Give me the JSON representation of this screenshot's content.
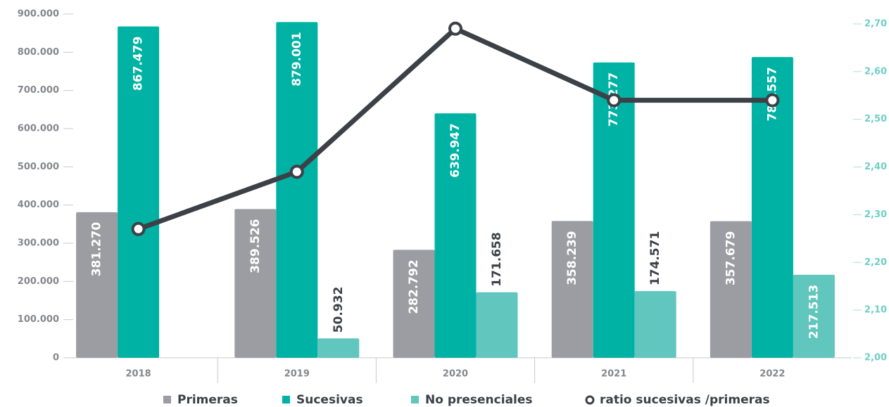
{
  "chart_data": {
    "type": "bar",
    "categories": [
      "2018",
      "2019",
      "2020",
      "2021",
      "2022"
    ],
    "series": [
      {
        "name": "Primeras",
        "color": "#9c9da2",
        "values": [
          381270,
          389526,
          282792,
          358239,
          357679
        ],
        "value_labels": [
          "381.270",
          "389.526",
          "282.792",
          "358.239",
          "357.679"
        ]
      },
      {
        "name": "Sucesivas",
        "color": "#00b2a3",
        "values": [
          867479,
          879001,
          639947,
          773277,
          787557
        ],
        "value_labels": [
          "867.479",
          "879.001",
          "639.947",
          "773.277",
          "787.557"
        ]
      },
      {
        "name": "No presenciales",
        "color": "#61c6bd",
        "values": [
          null,
          50932,
          171658,
          174571,
          217513
        ],
        "value_labels": [
          null,
          "50.932",
          "171.658",
          "174.571",
          "217.513"
        ]
      },
      {
        "name": "ratio sucesivas /primeras",
        "type": "line",
        "axis": "y2",
        "color": "#3c4047",
        "values": [
          2.27,
          2.39,
          2.69,
          2.54,
          2.54
        ]
      }
    ],
    "ylim": [
      0,
      900000
    ],
    "yticks": [
      0,
      {
        "value": 100000,
        "label": "100.000"
      },
      {
        "value": 200000,
        "label": "200.000"
      },
      {
        "value": 300000,
        "label": "300.000"
      },
      {
        "value": 400000,
        "label": "400.000"
      },
      {
        "value": 500000,
        "label": "500.000"
      },
      {
        "value": 600000,
        "label": "600.000"
      },
      {
        "value": 700000,
        "label": "700.000"
      },
      {
        "value": 800000,
        "label": "800.000"
      },
      {
        "value": 900000,
        "label": "900.000"
      }
    ],
    "y2lim": [
      2.0,
      2.7
    ],
    "y2ticks": [
      {
        "value": 2.0,
        "label": "2,00"
      },
      {
        "value": 2.1,
        "label": "2,10"
      },
      {
        "value": 2.2,
        "label": "2,20"
      },
      {
        "value": 2.3,
        "label": "2,30"
      },
      {
        "value": 2.4,
        "label": "2,40"
      },
      {
        "value": 2.5,
        "label": "2,50"
      },
      {
        "value": 2.6,
        "label": "2,60"
      },
      {
        "value": 2.7,
        "label": "2,70"
      }
    ]
  }
}
